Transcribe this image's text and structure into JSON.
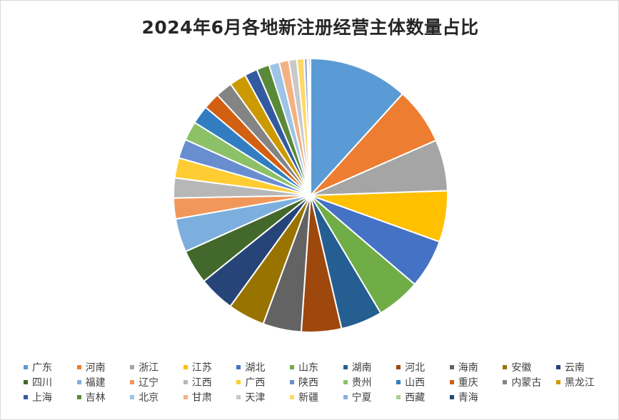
{
  "chart_data": {
    "type": "pie",
    "title": "2024年6月各地新注册经营主体数量占比",
    "legend_position": "bottom",
    "categories": [
      "广东",
      "河南",
      "浙江",
      "江苏",
      "湖北",
      "山东",
      "湖南",
      "河北",
      "海南",
      "安徽",
      "云南",
      "四川",
      "福建",
      "辽宁",
      "江西",
      "广西",
      "陕西",
      "贵州",
      "山西",
      "重庆",
      "内蒙古",
      "黑龙江",
      "上海",
      "吉林",
      "北京",
      "甘肃",
      "天津",
      "新疆",
      "宁夏",
      "西藏",
      "青海"
    ],
    "values": [
      12.4,
      7.1,
      6.4,
      6.4,
      6.1,
      5.5,
      5.2,
      5.0,
      4.8,
      4.6,
      4.5,
      4.3,
      4.2,
      2.6,
      2.5,
      2.5,
      2.4,
      2.4,
      2.3,
      2.1,
      2.1,
      2.1,
      1.6,
      1.6,
      1.3,
      1.2,
      1.0,
      0.9,
      0.4,
      0.2,
      0.2
    ],
    "colors": [
      "#5b9bd5",
      "#ed7d31",
      "#a5a5a5",
      "#ffc000",
      "#4472c4",
      "#70ad47",
      "#255e91",
      "#9e480e",
      "#636363",
      "#997300",
      "#264478",
      "#43682b",
      "#7cafdd",
      "#f1975a",
      "#b7b7b7",
      "#ffcd33",
      "#698ed0",
      "#8cc168",
      "#327dc2",
      "#d26012",
      "#848484",
      "#cc9a00",
      "#335aa1",
      "#5a8a39",
      "#9dc3e6",
      "#f4b183",
      "#c9c9c9",
      "#ffd966",
      "#8faadc",
      "#a9d18e",
      "#1f4e79"
    ]
  }
}
